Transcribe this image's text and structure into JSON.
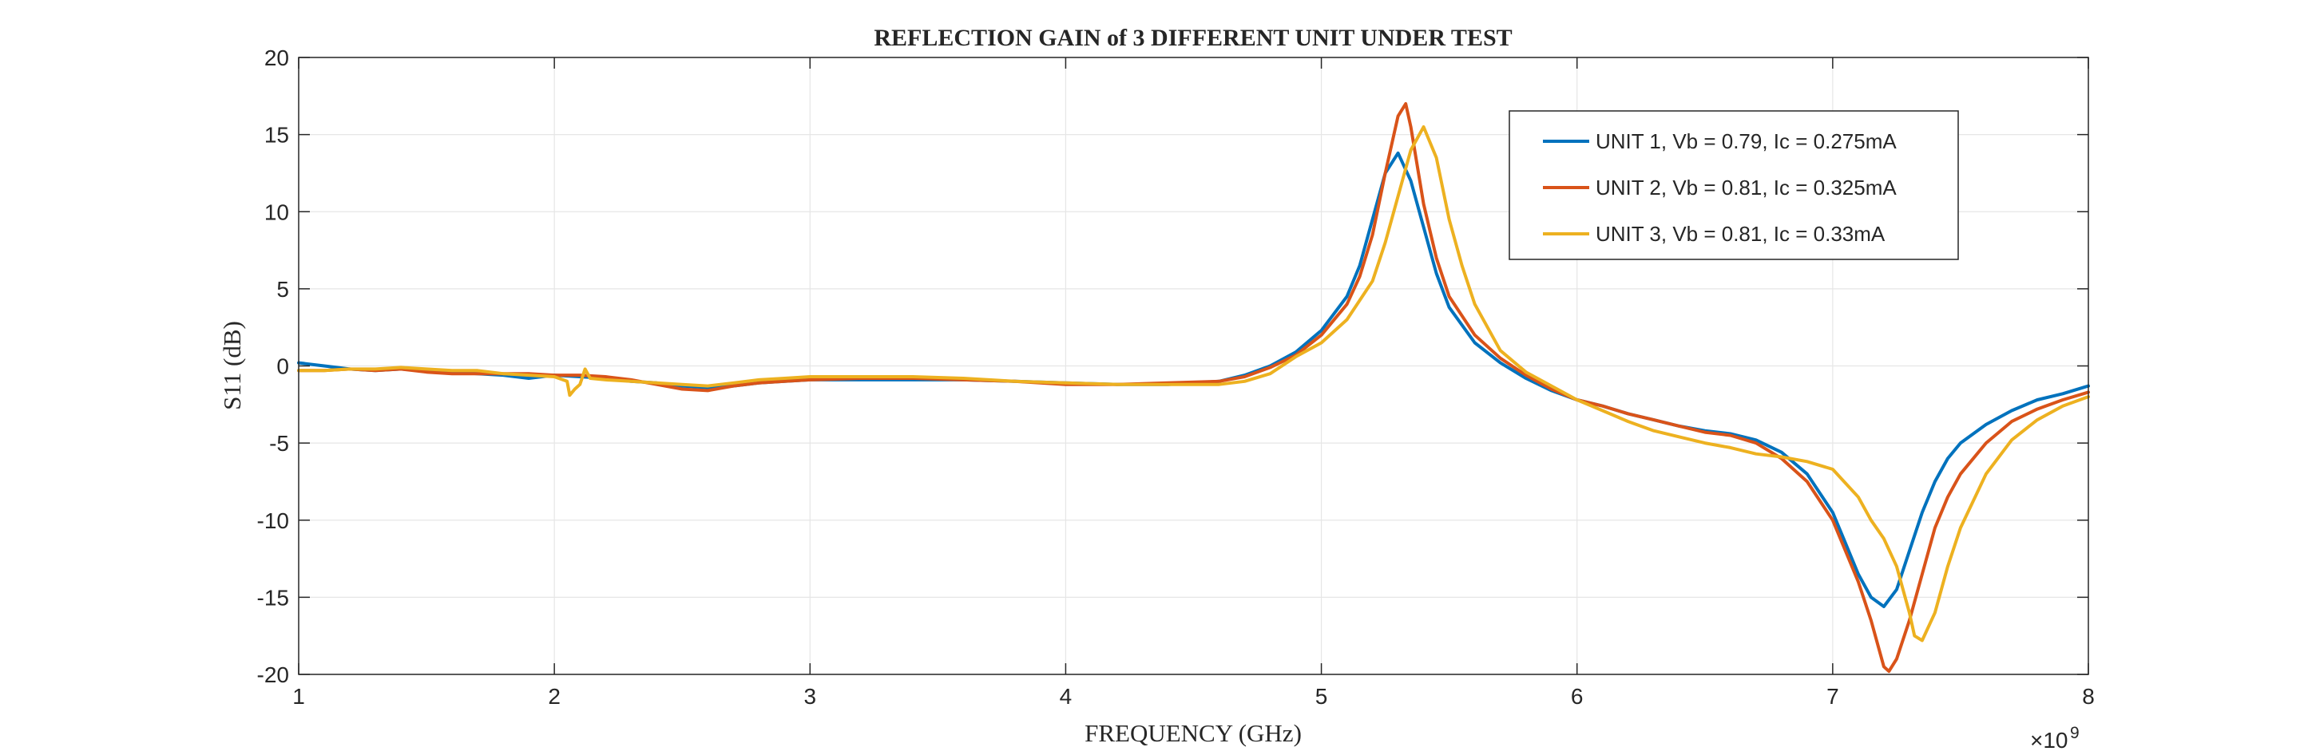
{
  "chart_data": {
    "type": "line",
    "title": "REFLECTION GAIN of 3 DIFFERENT UNIT UNDER TEST",
    "xlabel": "FREQUENCY (GHz)",
    "ylabel": "S11 (dB)",
    "x_exponent_label": "×10",
    "x_exponent_power": "9",
    "xlim": [
      1000000000,
      8000000000
    ],
    "ylim": [
      -20,
      20
    ],
    "x_ticks": [
      1000000000,
      2000000000,
      3000000000,
      4000000000,
      5000000000,
      6000000000,
      7000000000,
      8000000000
    ],
    "x_tick_labels": [
      "1",
      "2",
      "3",
      "4",
      "5",
      "6",
      "7",
      "8"
    ],
    "y_ticks": [
      20,
      15,
      10,
      5,
      0,
      -5,
      -10,
      -15,
      -20
    ],
    "y_tick_labels": [
      "20",
      "15",
      "10",
      "5",
      "0",
      "-5",
      "-10",
      "-15",
      "-20"
    ],
    "grid": true,
    "legend_position": "top-right",
    "series": [
      {
        "name": "UNIT 1, Vb = 0.79, Ic = 0.275mA",
        "color": "#0072BD",
        "x": [
          1000000000,
          1100000000,
          1200000000,
          1300000000,
          1400000000,
          1500000000,
          1600000000,
          1700000000,
          1800000000,
          1900000000,
          2000000000,
          2100000000,
          2200000000,
          2300000000,
          2400000000,
          2500000000,
          2600000000,
          2700000000,
          2800000000,
          2900000000,
          3000000000,
          3200000000,
          3400000000,
          3600000000,
          3800000000,
          4000000000,
          4200000000,
          4400000000,
          4600000000,
          4700000000,
          4800000000,
          4900000000,
          5000000000,
          5100000000,
          5150000000,
          5200000000,
          5250000000,
          5300000000,
          5350000000,
          5400000000,
          5450000000,
          5500000000,
          5600000000,
          5700000000,
          5800000000,
          5900000000,
          6000000000,
          6100000000,
          6200000000,
          6300000000,
          6400000000,
          6500000000,
          6600000000,
          6700000000,
          6800000000,
          6900000000,
          7000000000,
          7050000000,
          7100000000,
          7150000000,
          7200000000,
          7250000000,
          7300000000,
          7350000000,
          7400000000,
          7450000000,
          7500000000,
          7600000000,
          7700000000,
          7800000000,
          7900000000,
          8000000000
        ],
        "y": [
          0.2,
          0.0,
          -0.2,
          -0.3,
          -0.2,
          -0.3,
          -0.4,
          -0.5,
          -0.6,
          -0.8,
          -0.6,
          -0.7,
          -0.8,
          -1.0,
          -1.1,
          -1.3,
          -1.4,
          -1.3,
          -1.1,
          -1.0,
          -0.9,
          -0.9,
          -0.9,
          -0.9,
          -1.0,
          -1.1,
          -1.2,
          -1.2,
          -1.0,
          -0.6,
          0.0,
          0.9,
          2.3,
          4.5,
          6.5,
          9.5,
          12.5,
          13.8,
          12.0,
          9.0,
          6.0,
          3.8,
          1.5,
          0.2,
          -0.8,
          -1.6,
          -2.2,
          -2.6,
          -3.1,
          -3.5,
          -3.9,
          -4.2,
          -4.4,
          -4.8,
          -5.6,
          -7.0,
          -9.5,
          -11.5,
          -13.5,
          -15.0,
          -15.6,
          -14.5,
          -12.0,
          -9.5,
          -7.5,
          -6.0,
          -5.0,
          -3.8,
          -2.9,
          -2.2,
          -1.8,
          -1.3
        ]
      },
      {
        "name": "UNIT 2, Vb = 0.81, Ic = 0.325mA",
        "color": "#D95319",
        "x": [
          1000000000,
          1100000000,
          1200000000,
          1300000000,
          1400000000,
          1500000000,
          1600000000,
          1700000000,
          1800000000,
          1900000000,
          2000000000,
          2100000000,
          2200000000,
          2300000000,
          2400000000,
          2500000000,
          2600000000,
          2700000000,
          2800000000,
          2900000000,
          3000000000,
          3200000000,
          3400000000,
          3600000000,
          3800000000,
          4000000000,
          4200000000,
          4400000000,
          4600000000,
          4700000000,
          4800000000,
          4900000000,
          5000000000,
          5100000000,
          5150000000,
          5200000000,
          5250000000,
          5300000000,
          5330000000,
          5350000000,
          5400000000,
          5450000000,
          5500000000,
          5600000000,
          5700000000,
          5800000000,
          5900000000,
          6000000000,
          6100000000,
          6200000000,
          6300000000,
          6400000000,
          6500000000,
          6600000000,
          6700000000,
          6800000000,
          6900000000,
          7000000000,
          7050000000,
          7100000000,
          7150000000,
          7200000000,
          7220000000,
          7250000000,
          7300000000,
          7350000000,
          7400000000,
          7450000000,
          7500000000,
          7600000000,
          7700000000,
          7800000000,
          7900000000,
          8000000000
        ],
        "y": [
          -0.3,
          -0.3,
          -0.2,
          -0.3,
          -0.2,
          -0.4,
          -0.5,
          -0.5,
          -0.5,
          -0.5,
          -0.6,
          -0.6,
          -0.7,
          -0.9,
          -1.2,
          -1.5,
          -1.6,
          -1.3,
          -1.1,
          -1.0,
          -0.9,
          -0.8,
          -0.8,
          -0.9,
          -1.0,
          -1.2,
          -1.2,
          -1.1,
          -1.0,
          -0.7,
          -0.1,
          0.7,
          2.0,
          4.0,
          5.8,
          8.5,
          12.5,
          16.2,
          17.0,
          15.5,
          10.5,
          7.0,
          4.5,
          2.0,
          0.5,
          -0.6,
          -1.5,
          -2.2,
          -2.6,
          -3.1,
          -3.5,
          -3.9,
          -4.3,
          -4.5,
          -5.0,
          -6.0,
          -7.5,
          -10.0,
          -12.0,
          -14.0,
          -16.5,
          -19.5,
          -19.8,
          -19.0,
          -16.5,
          -13.5,
          -10.5,
          -8.5,
          -7.0,
          -5.0,
          -3.6,
          -2.8,
          -2.2,
          -1.7
        ]
      },
      {
        "name": "UNIT 3, Vb = 0.81, Ic = 0.33mA",
        "color": "#EDB120",
        "x": [
          1000000000,
          1100000000,
          1200000000,
          1300000000,
          1400000000,
          1500000000,
          1600000000,
          1700000000,
          1800000000,
          1900000000,
          2000000000,
          2050000000,
          2060000000,
          2080000000,
          2100000000,
          2120000000,
          2140000000,
          2200000000,
          2300000000,
          2400000000,
          2500000000,
          2600000000,
          2700000000,
          2800000000,
          2900000000,
          3000000000,
          3200000000,
          3400000000,
          3600000000,
          3800000000,
          4000000000,
          4200000000,
          4400000000,
          4600000000,
          4700000000,
          4800000000,
          4900000000,
          5000000000,
          5100000000,
          5200000000,
          5250000000,
          5300000000,
          5350000000,
          5400000000,
          5450000000,
          5500000000,
          5550000000,
          5600000000,
          5700000000,
          5800000000,
          5900000000,
          6000000000,
          6100000000,
          6200000000,
          6300000000,
          6400000000,
          6500000000,
          6600000000,
          6700000000,
          6800000000,
          6900000000,
          7000000000,
          7100000000,
          7150000000,
          7200000000,
          7250000000,
          7300000000,
          7320000000,
          7350000000,
          7400000000,
          7450000000,
          7500000000,
          7600000000,
          7700000000,
          7800000000,
          7900000000,
          8000000000
        ],
        "y": [
          -0.3,
          -0.3,
          -0.2,
          -0.2,
          -0.1,
          -0.2,
          -0.3,
          -0.3,
          -0.5,
          -0.6,
          -0.7,
          -1.0,
          -1.9,
          -1.5,
          -1.2,
          -0.2,
          -0.8,
          -0.9,
          -1.0,
          -1.1,
          -1.2,
          -1.3,
          -1.1,
          -0.9,
          -0.8,
          -0.7,
          -0.7,
          -0.7,
          -0.8,
          -1.0,
          -1.1,
          -1.2,
          -1.2,
          -1.2,
          -1.0,
          -0.5,
          0.6,
          1.5,
          3.0,
          5.5,
          8.0,
          11.0,
          14.0,
          15.5,
          13.5,
          9.5,
          6.5,
          4.0,
          1.0,
          -0.4,
          -1.3,
          -2.2,
          -2.9,
          -3.6,
          -4.2,
          -4.6,
          -5.0,
          -5.3,
          -5.7,
          -5.9,
          -6.2,
          -6.7,
          -8.5,
          -10.0,
          -11.2,
          -13.0,
          -16.0,
          -17.5,
          -17.8,
          -16.0,
          -13.0,
          -10.5,
          -7.0,
          -4.8,
          -3.5,
          -2.6,
          -2.0
        ]
      }
    ]
  }
}
